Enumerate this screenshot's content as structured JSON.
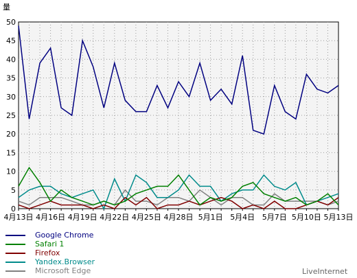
{
  "chart_data": {
    "type": "line",
    "ylabel": "量",
    "ylim": [
      0,
      50
    ],
    "yticks": [
      0,
      5,
      10,
      15,
      20,
      25,
      30,
      35,
      40,
      45,
      50
    ],
    "grid": true,
    "legend_position": "bottom-left",
    "categories": [
      "4月13日",
      "4月14日",
      "4月15日",
      "4月16日",
      "4月17日",
      "4月18日",
      "4月19日",
      "4月20日",
      "4月21日",
      "4月22日",
      "4月23日",
      "4月24日",
      "4月25日",
      "4月26日",
      "4月27日",
      "4月28日",
      "4月29日",
      "4月30日",
      "5月1日",
      "5月2日",
      "5月3日",
      "5月4日",
      "5月5日",
      "5月6日",
      "5月7日",
      "5月8日",
      "5月9日",
      "5月10日",
      "5月11日",
      "5月12日",
      "5月13日"
    ],
    "xtick_labels": [
      "4月13日",
      "4月16日",
      "4月19日",
      "4月22日",
      "4月25日",
      "4月28日",
      "5月1日",
      "5月4日",
      "5月7日",
      "5月10日",
      "5月13日"
    ],
    "series": [
      {
        "name": "Google Chrome",
        "color": "#000080",
        "values": [
          49,
          24,
          39,
          43,
          27,
          25,
          45,
          38,
          27,
          39,
          29,
          26,
          26,
          33,
          27,
          34,
          30,
          39,
          29,
          32,
          28,
          41,
          21,
          20,
          33,
          26,
          24,
          36,
          32,
          31,
          33
        ]
      },
      {
        "name": "Safari 1",
        "color": "#008000",
        "values": [
          6,
          11,
          7,
          2,
          5,
          3,
          2,
          1,
          2,
          1,
          2,
          4,
          5,
          6,
          6,
          9,
          5,
          1,
          3,
          2,
          3,
          6,
          7,
          4,
          3,
          2,
          3,
          1,
          2,
          4,
          1
        ]
      },
      {
        "name": "Firefox",
        "color": "#800000",
        "values": [
          1,
          0,
          1,
          2,
          1,
          1,
          1,
          0,
          1,
          0,
          3,
          1,
          3,
          0,
          1,
          1,
          2,
          1,
          2,
          3,
          2,
          0,
          1,
          0,
          2,
          0,
          0,
          1,
          2,
          1,
          3
        ]
      },
      {
        "name": "Yandex.Browser",
        "color": "#008b8b",
        "values": [
          3,
          5,
          6,
          6,
          4,
          3,
          4,
          5,
          0,
          8,
          2,
          9,
          7,
          3,
          3,
          5,
          9,
          6,
          6,
          2,
          4,
          5,
          5,
          9,
          6,
          5,
          7,
          1,
          2,
          3,
          4
        ]
      },
      {
        "name": "Microsoft Edge",
        "color": "#808080",
        "values": [
          2,
          1,
          3,
          3,
          3,
          2,
          1,
          1,
          2,
          1,
          5,
          2,
          2,
          1,
          3,
          3,
          2,
          5,
          3,
          1,
          3,
          3,
          1,
          1,
          4,
          2,
          2,
          2,
          2,
          1,
          2
        ]
      }
    ]
  },
  "source_label": "LiveInternet"
}
